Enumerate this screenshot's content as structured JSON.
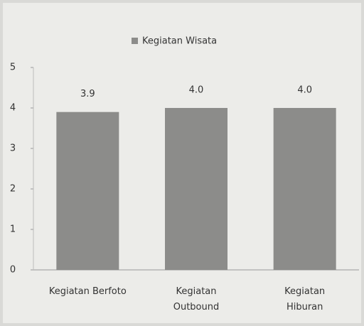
{
  "chart_data": {
    "type": "bar",
    "legend": "Kegiatan Wisata",
    "categories": [
      "Kegiatan Berfoto",
      "Kegiatan Outbound",
      "Kegiatan Hiburan"
    ],
    "values": [
      3.9,
      4.0,
      4.0
    ],
    "value_labels": [
      "3.9",
      "4.0",
      "4.0"
    ],
    "color": "#8c8c8a",
    "ylim": [
      0,
      5
    ],
    "yticks": [
      0,
      1,
      2,
      3,
      4,
      5
    ],
    "grid": false
  }
}
